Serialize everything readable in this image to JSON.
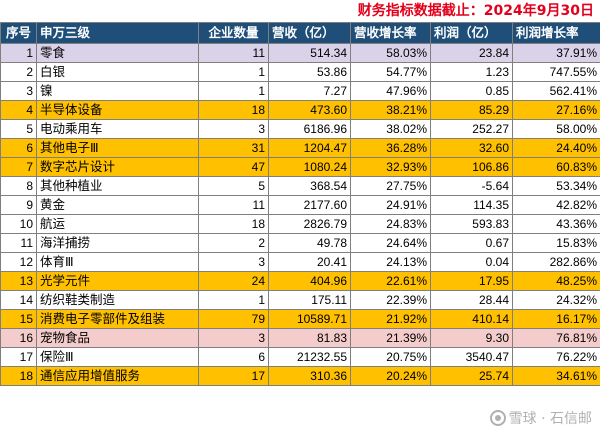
{
  "note": "财务指标数据截止：2024年9月30日",
  "headers": {
    "index": "序号",
    "industry": "申万三级",
    "count": "企业数量",
    "revenue": "营收（亿）",
    "revenue_growth": "营收增长率",
    "profit": "利润（亿）",
    "profit_growth": "利润增长率"
  },
  "colors": {
    "header_bg": "#1f4e79",
    "gold": "#ffc000",
    "purple": "#d9d2e9",
    "pink": "#f4cccc",
    "note": "#e3001b"
  },
  "rows": [
    {
      "index": "1",
      "industry": "零食",
      "count": "11",
      "revenue": "514.34",
      "revenue_growth": "58.03%",
      "profit": "23.84",
      "profit_growth": "37.91%",
      "highlight": "purple"
    },
    {
      "index": "2",
      "industry": "白银",
      "count": "1",
      "revenue": "53.86",
      "revenue_growth": "54.77%",
      "profit": "1.23",
      "profit_growth": "747.55%",
      "highlight": "none"
    },
    {
      "index": "3",
      "industry": "镍",
      "count": "1",
      "revenue": "7.27",
      "revenue_growth": "47.96%",
      "profit": "0.85",
      "profit_growth": "562.41%",
      "highlight": "none"
    },
    {
      "index": "4",
      "industry": "半导体设备",
      "count": "18",
      "revenue": "473.60",
      "revenue_growth": "38.21%",
      "profit": "85.29",
      "profit_growth": "27.16%",
      "highlight": "gold"
    },
    {
      "index": "5",
      "industry": "电动乘用车",
      "count": "3",
      "revenue": "6186.96",
      "revenue_growth": "38.02%",
      "profit": "252.27",
      "profit_growth": "58.00%",
      "highlight": "none"
    },
    {
      "index": "6",
      "industry": "其他电子Ⅲ",
      "count": "31",
      "revenue": "1204.47",
      "revenue_growth": "36.28%",
      "profit": "32.60",
      "profit_growth": "24.40%",
      "highlight": "gold"
    },
    {
      "index": "7",
      "industry": "数字芯片设计",
      "count": "47",
      "revenue": "1080.24",
      "revenue_growth": "32.93%",
      "profit": "106.86",
      "profit_growth": "60.83%",
      "highlight": "gold"
    },
    {
      "index": "8",
      "industry": "其他种植业",
      "count": "5",
      "revenue": "368.54",
      "revenue_growth": "27.75%",
      "profit": "-5.64",
      "profit_growth": "53.34%",
      "highlight": "none"
    },
    {
      "index": "9",
      "industry": "黄金",
      "count": "11",
      "revenue": "2177.60",
      "revenue_growth": "24.91%",
      "profit": "114.35",
      "profit_growth": "42.82%",
      "highlight": "none"
    },
    {
      "index": "10",
      "industry": "航运",
      "count": "18",
      "revenue": "2826.79",
      "revenue_growth": "24.83%",
      "profit": "593.83",
      "profit_growth": "43.36%",
      "highlight": "none"
    },
    {
      "index": "11",
      "industry": "海洋捕捞",
      "count": "2",
      "revenue": "49.78",
      "revenue_growth": "24.64%",
      "profit": "0.67",
      "profit_growth": "15.83%",
      "highlight": "none"
    },
    {
      "index": "12",
      "industry": "体育Ⅲ",
      "count": "3",
      "revenue": "20.41",
      "revenue_growth": "24.13%",
      "profit": "0.04",
      "profit_growth": "282.86%",
      "highlight": "none"
    },
    {
      "index": "13",
      "industry": "光学元件",
      "count": "24",
      "revenue": "404.96",
      "revenue_growth": "22.61%",
      "profit": "17.95",
      "profit_growth": "48.25%",
      "highlight": "gold"
    },
    {
      "index": "14",
      "industry": "纺织鞋类制造",
      "count": "1",
      "revenue": "175.11",
      "revenue_growth": "22.39%",
      "profit": "28.44",
      "profit_growth": "24.32%",
      "highlight": "none"
    },
    {
      "index": "15",
      "industry": "消费电子零部件及组装",
      "count": "79",
      "revenue": "10589.71",
      "revenue_growth": "21.92%",
      "profit": "410.14",
      "profit_growth": "16.17%",
      "highlight": "gold"
    },
    {
      "index": "16",
      "industry": "宠物食品",
      "count": "3",
      "revenue": "81.83",
      "revenue_growth": "21.39%",
      "profit": "9.30",
      "profit_growth": "76.81%",
      "highlight": "pink"
    },
    {
      "index": "17",
      "industry": "保险Ⅲ",
      "count": "6",
      "revenue": "21232.55",
      "revenue_growth": "20.75%",
      "profit": "3540.47",
      "profit_growth": "76.22%",
      "highlight": "none"
    },
    {
      "index": "18",
      "industry": "通信应用增值服务",
      "count": "17",
      "revenue": "310.36",
      "revenue_growth": "20.24%",
      "profit": "25.74",
      "profit_growth": "34.61%",
      "highlight": "gold"
    }
  ],
  "watermark": "雪球 · 石信邮"
}
